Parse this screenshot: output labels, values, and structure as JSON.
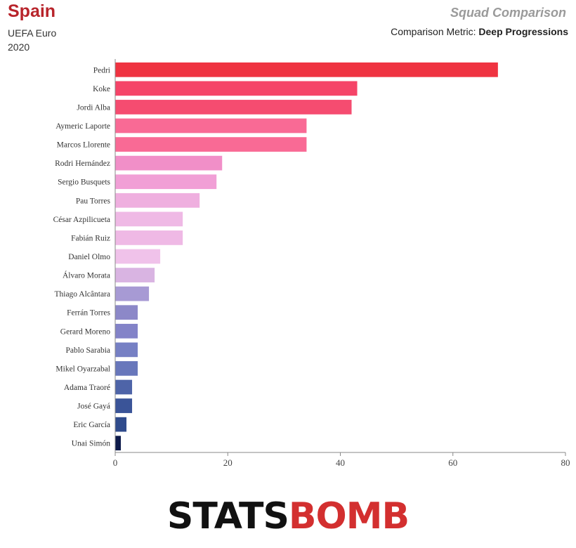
{
  "header": {
    "team": "Spain",
    "competition": "UEFA Euro 2020",
    "title": "Squad Comparison",
    "metric_label": "Comparison Metric:",
    "metric_value": "Deep Progressions"
  },
  "logo": {
    "text_a": "STATS",
    "text_b": "BOMB"
  },
  "colors": {
    "team": "#b8242b",
    "bar_top": "#ef3341",
    "bar_mid": "#f0c2ea",
    "bar_bottom": "#0d1a4a"
  },
  "chart_data": {
    "type": "bar",
    "orientation": "horizontal",
    "categories": [
      "Pedri",
      "Koke",
      "Jordi Alba",
      "Aymeric Laporte",
      "Marcos Llorente",
      "Rodri Hernández",
      "Sergio Busquets",
      "Pau Torres",
      "César Azpilicueta",
      "Fabián Ruiz",
      "Daniel Olmo",
      "Álvaro Morata",
      "Thiago Alcântara",
      "Ferrán Torres",
      "Gerard Moreno",
      "Pablo Sarabia",
      "Mikel Oyarzabal",
      "Adama Traoré",
      "José Gayá",
      "Eric García",
      "Unai Simón"
    ],
    "values": [
      68,
      43,
      42,
      34,
      34,
      19,
      18,
      15,
      12,
      12,
      8,
      7,
      6,
      4,
      4,
      4,
      4,
      3,
      3,
      2,
      1
    ],
    "bar_colors": [
      "#ef3341",
      "#f54468",
      "#f54c70",
      "#f96a95",
      "#f96a95",
      "#f18fc8",
      "#f19fd6",
      "#efafdf",
      "#efb9e5",
      "#efb9e5",
      "#f0c2ea",
      "#d9b4e2",
      "#a79ad4",
      "#8c88c8",
      "#8383c8",
      "#7680c4",
      "#6877bb",
      "#4e64a8",
      "#3a5498",
      "#2f4b8c",
      "#0d1a4a"
    ],
    "xlim": [
      0,
      80
    ],
    "xticks": [
      "0",
      "20",
      "40",
      "60",
      "80"
    ],
    "grid": false
  }
}
